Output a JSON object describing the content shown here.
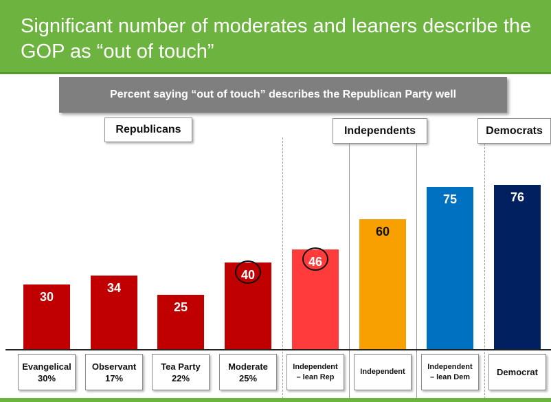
{
  "title": "Significant number of moderates and leaners describe the GOP as “out of touch”",
  "subtitle": "Percent saying “out of touch” describes the Republican Party well",
  "groups": {
    "republicans": "Republicans",
    "independents": "Independents",
    "democrats": "Democrats"
  },
  "colors": {
    "title_green": "#6db33f",
    "rep_red": "#c00000",
    "lean_rep_red": "#ff3b3b",
    "independent_orange": "#f8a000",
    "lean_dem_blue": "#0070c0",
    "democrat_navy": "#002060"
  },
  "chart_data": {
    "type": "bar",
    "title": "Percent saying “out of touch” describes the Republican Party well",
    "categories": [
      {
        "line1": "Evangelical",
        "line2": "30%"
      },
      {
        "line1": "Observant",
        "line2": "17%"
      },
      {
        "line1": "Tea Party",
        "line2": "22%"
      },
      {
        "line1": "Moderate",
        "line2": "25%"
      },
      {
        "line1": "Independent",
        "line2": "– lean Rep"
      },
      {
        "line1": "Independent",
        "line2": ""
      },
      {
        "line1": "Independent",
        "line2": "– lean Dem"
      },
      {
        "line1": "Democrat",
        "line2": ""
      }
    ],
    "values": [
      30,
      34,
      25,
      40,
      46,
      60,
      75,
      76
    ],
    "value_labels": [
      "30",
      "34",
      "25",
      "40",
      "46",
      "60",
      "75",
      "76"
    ],
    "bar_colors": [
      "#c00000",
      "#c00000",
      "#c00000",
      "#c00000",
      "#ff3b3b",
      "#f8a000",
      "#0070c0",
      "#002060"
    ],
    "circled": [
      false,
      false,
      false,
      true,
      true,
      false,
      false,
      false
    ],
    "ylim": [
      0,
      100
    ],
    "grid": false,
    "legend": "none"
  }
}
